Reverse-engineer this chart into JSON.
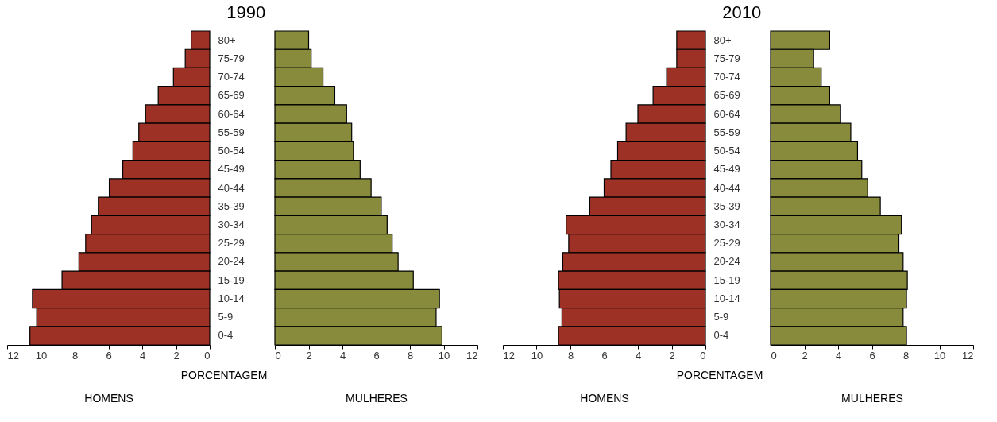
{
  "chart_data": [
    {
      "type": "bar",
      "orientation": "horizontal",
      "categories": [
        "80+",
        "75-79",
        "70-74",
        "65-69",
        "60-64",
        "55-59",
        "50-54",
        "45-49",
        "40-44",
        "35-39",
        "30-34",
        "25-29",
        "20-24",
        "15-19",
        "10-14",
        "5-9",
        "0-4"
      ],
      "series": [
        {
          "color": "#9e3126",
          "values": [
            1.1,
            1.45,
            2.15,
            3.05,
            3.8,
            4.2,
            4.55,
            5.15,
            5.95,
            6.6,
            7.0,
            7.35,
            7.75,
            8.75,
            10.5,
            10.25,
            10.65
          ]
        }
      ],
      "xlim": [
        12,
        0
      ],
      "xticks": [
        12,
        10,
        8,
        6,
        4,
        2,
        0
      ],
      "xlabel": "HOMENS",
      "annotations": [
        "PORCENTAGEM"
      ],
      "grid": false,
      "title": "1990"
    },
    {
      "type": "bar",
      "orientation": "horizontal",
      "categories": [
        null,
        null,
        null,
        null,
        null,
        null,
        null,
        null,
        null,
        null,
        null,
        null,
        null,
        null,
        null,
        null,
        null
      ],
      "series": [
        {
          "color": "#878b3b",
          "values": [
            2.0,
            2.15,
            2.85,
            3.55,
            4.25,
            4.55,
            4.65,
            5.05,
            5.7,
            6.3,
            6.65,
            6.95,
            7.3,
            8.2,
            9.75,
            9.55,
            9.9
          ]
        }
      ],
      "xlim": [
        0,
        12
      ],
      "xticks": [
        0,
        2,
        4,
        6,
        8,
        10,
        12
      ],
      "xlabel": "MULHERES",
      "tick_labels": "x",
      "grid": false
    },
    {
      "type": "bar",
      "orientation": "horizontal",
      "categories": [
        "80+",
        "75-79",
        "70-74",
        "65-69",
        "60-64",
        "55-59",
        "50-54",
        "45-49",
        "40-44",
        "35-39",
        "30-34",
        "25-29",
        "20-24",
        "15-19",
        "10-14",
        "5-9",
        "0-4"
      ],
      "series": [
        {
          "color": "#9e3126",
          "values": [
            1.7,
            1.7,
            2.3,
            3.1,
            4.0,
            4.7,
            5.2,
            5.6,
            6.0,
            6.85,
            8.25,
            8.1,
            8.45,
            8.7,
            8.65,
            8.5,
            8.7
          ]
        }
      ],
      "xlim": [
        12,
        0
      ],
      "xticks": [
        12,
        10,
        8,
        6,
        4,
        2,
        0
      ],
      "xlabel": "HOMENS",
      "annotations": [
        "PORCENTAGEM"
      ],
      "grid": false,
      "title": "2010"
    },
    {
      "type": "bar",
      "orientation": "horizontal",
      "categories": [
        null,
        null,
        null,
        null,
        null,
        null,
        null,
        null,
        null,
        null,
        null,
        null,
        null,
        null,
        null,
        null,
        null
      ],
      "series": [
        {
          "color": "#878b3b",
          "values": [
            3.5,
            2.55,
            3.0,
            3.5,
            4.15,
            4.75,
            5.15,
            5.4,
            5.75,
            6.5,
            7.75,
            7.6,
            7.85,
            8.1,
            8.05,
            7.85,
            8.05
          ]
        }
      ],
      "xlim": [
        0,
        12
      ],
      "xticks": [
        0,
        2,
        4,
        6,
        8,
        10,
        12
      ],
      "xlabel": "MULHERES",
      "tick_labels": "x",
      "grid": false
    }
  ]
}
